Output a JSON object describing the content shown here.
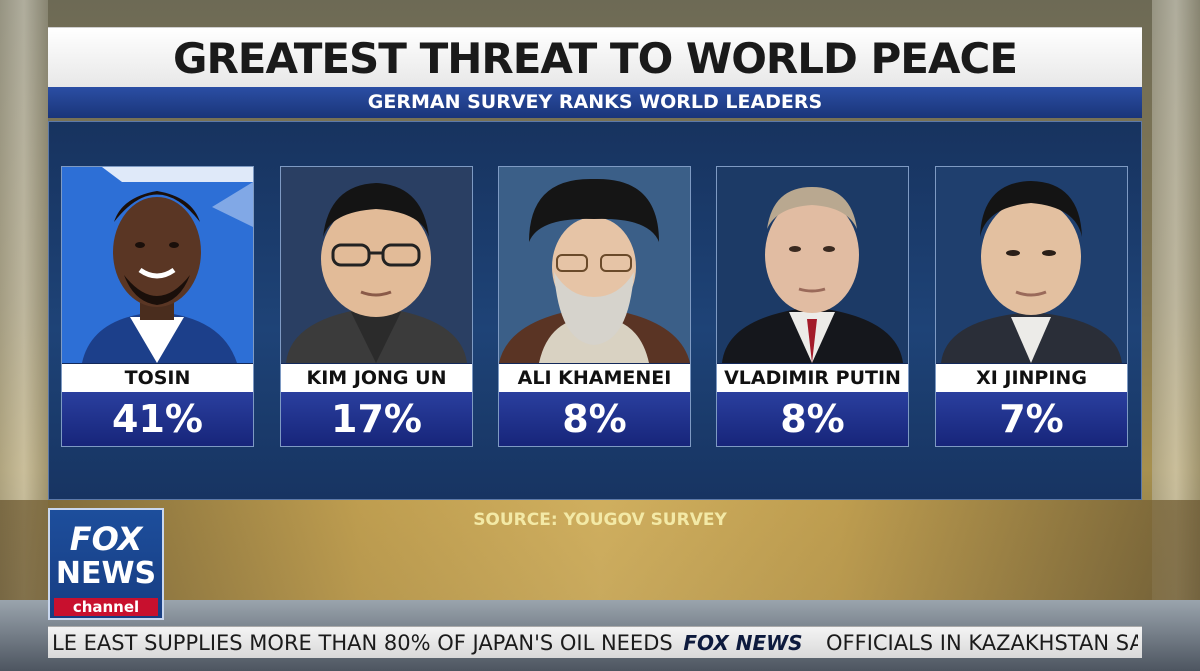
{
  "graphic": {
    "title": "GREATEST THREAT TO WORLD PEACE",
    "subtitle": "GERMAN SURVEY RANKS WORLD LEADERS",
    "source": "SOURCE: YOUGOV SURVEY",
    "leaders": [
      {
        "name": "TOSIN",
        "percent": "41%",
        "photo_bg": "#2d6fd6"
      },
      {
        "name": "KIM JONG UN",
        "percent": "17%",
        "photo_bg": "#2a3f63"
      },
      {
        "name": "ALI KHAMENEI",
        "percent": "8%",
        "photo_bg": "#3b5f88"
      },
      {
        "name": "VLADIMIR PUTIN",
        "percent": "8%",
        "photo_bg": "#1c3a66"
      },
      {
        "name": "XI JINPING",
        "percent": "7%",
        "photo_bg": "#1f3f6e"
      }
    ]
  },
  "logo": {
    "line1": "FOX",
    "line2": "NEWS",
    "line3": "channel"
  },
  "ticker": {
    "left": "LE EAST SUPPLIES MORE THAN 80% OF JAPAN'S OIL NEEDS",
    "brand": "FOX NEWS",
    "right": "OFFICIALS IN KAZAKHSTAN SA"
  },
  "colors": {
    "accent_blue": "#1a3579",
    "ticker_red": "#c8102e"
  }
}
